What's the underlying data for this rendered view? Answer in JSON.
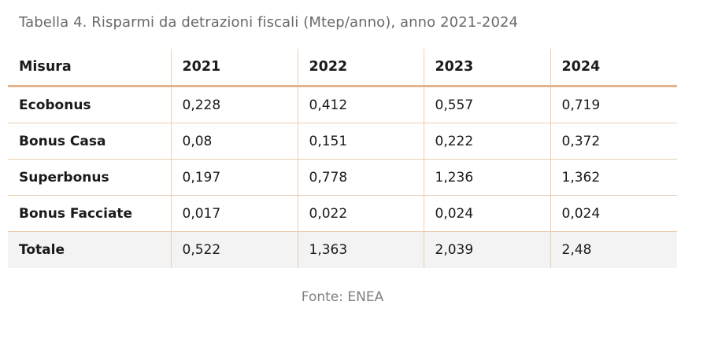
{
  "caption": "Tabella 4. Risparmi da detrazioni fiscali (Mtep/anno), anno 2021-2024",
  "table": {
    "headers": [
      "Misura",
      "2021",
      "2022",
      "2023",
      "2024"
    ],
    "rows": [
      {
        "measure": "Ecobonus",
        "values": [
          "0,228",
          "0,412",
          "0,557",
          "0,719"
        ]
      },
      {
        "measure": "Bonus Casa",
        "values": [
          "0,08",
          "0,151",
          "0,222",
          "0,372"
        ]
      },
      {
        "measure": "Superbonus",
        "values": [
          "0,197",
          "0,778",
          "1,236",
          "1,362"
        ]
      },
      {
        "measure": "Bonus Facciate",
        "values": [
          "0,017",
          "0,022",
          "0,024",
          "0,024"
        ]
      }
    ],
    "total": {
      "measure": "Totale",
      "values": [
        "0,522",
        "1,363",
        "2,039",
        "2,48"
      ]
    }
  },
  "source": "Fonte: ENEA",
  "colors": {
    "grid_line": "#ebcdb0",
    "header_rule": "#e6b48c",
    "total_row_bg": "#f3f3f3",
    "caption_text": "#6a6a6a"
  }
}
